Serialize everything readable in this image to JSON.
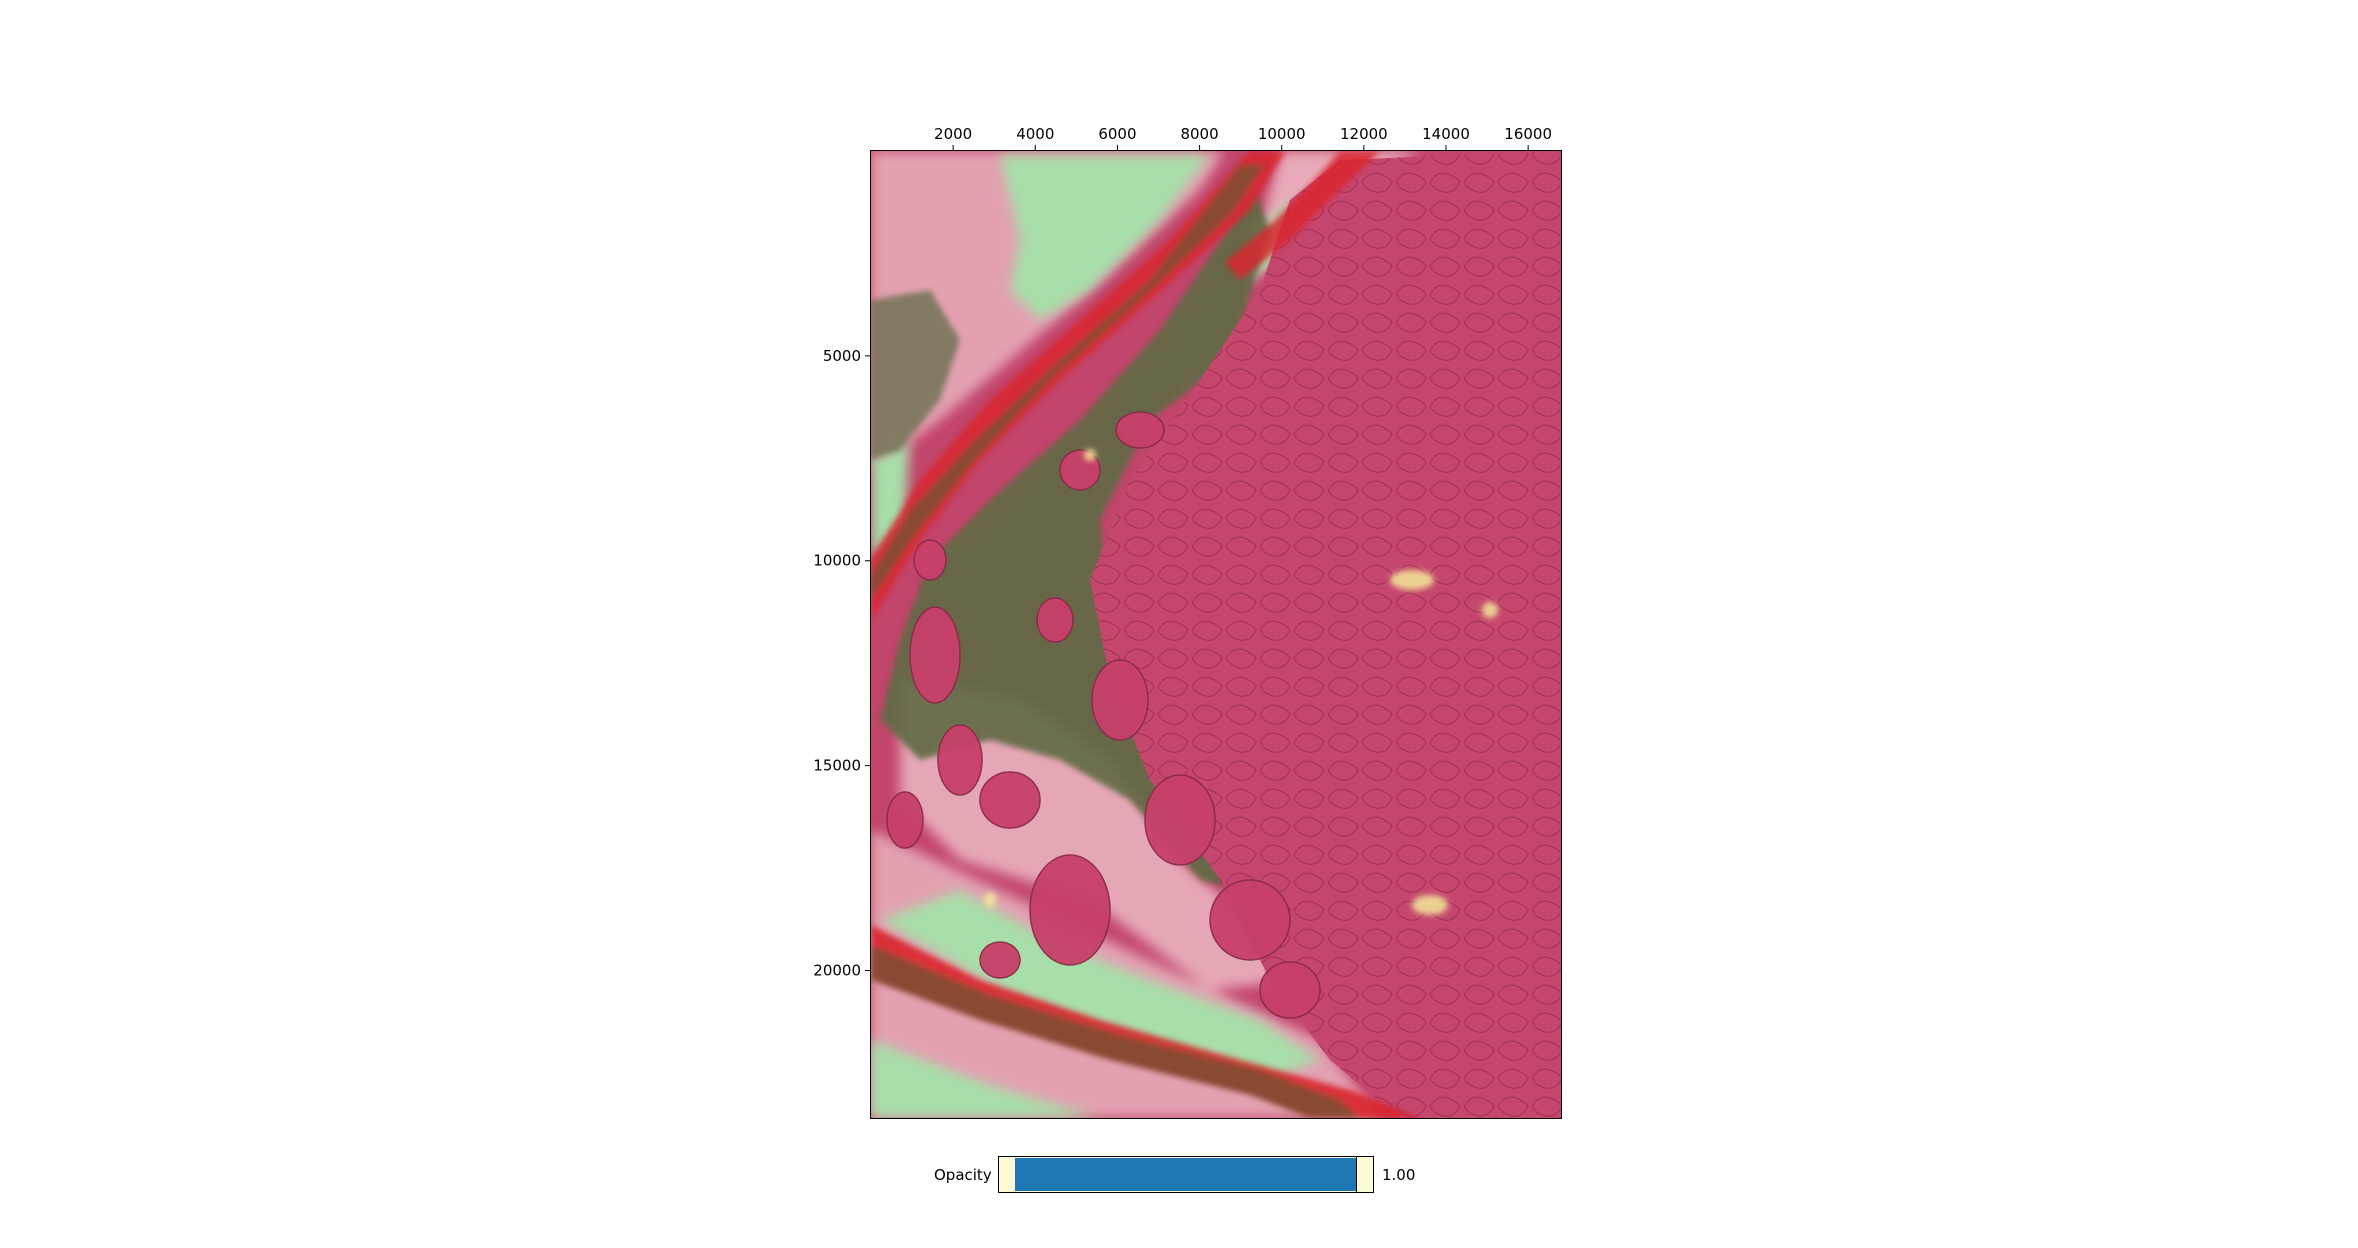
{
  "plot": {
    "x_ticks": [
      "2000",
      "4000",
      "6000",
      "8000",
      "10000",
      "12000",
      "14000",
      "16000"
    ],
    "y_ticks": [
      "5000",
      "10000",
      "15000",
      "20000"
    ],
    "x_tick_values": [
      2000,
      4000,
      6000,
      8000,
      10000,
      12000,
      14000,
      16000
    ],
    "y_tick_values": [
      5000,
      10000,
      15000,
      20000
    ],
    "x_range": [
      0,
      16800
    ],
    "y_range": [
      0,
      23600
    ],
    "x_axis_position": "top",
    "image_description_colors": {
      "tissue_pink": "#c2456b",
      "tissue_dark": "#8a2a48",
      "overlay_green": "#a7dea9",
      "overlay_light_pink": "#ebb1bc",
      "overlay_brown": "#8a4a32",
      "overlay_red": "#d9232f",
      "stroma_green": "#5d6f46",
      "yellow": "#f3e89a"
    }
  },
  "slider": {
    "label": "Opacity",
    "value": 1.0,
    "value_text": "1.00",
    "track_color": "#fdfbd6",
    "fill_color": "#1f77b4"
  }
}
